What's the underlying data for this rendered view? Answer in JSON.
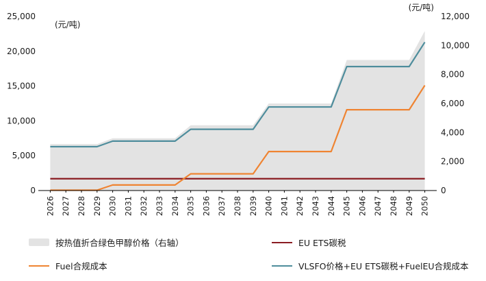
{
  "chart_data": {
    "type": "line",
    "title": "",
    "grid": false,
    "legend_position": "bottom",
    "x": [
      "2026",
      "2027",
      "2028",
      "2029",
      "2030",
      "2031",
      "2032",
      "2033",
      "2034",
      "2035",
      "2036",
      "2037",
      "2038",
      "2039",
      "2040",
      "2041",
      "2042",
      "2043",
      "2044",
      "2045",
      "2046",
      "2047",
      "2048",
      "2049",
      "2050"
    ],
    "left_axis": {
      "label": "(元/吨)",
      "lim": [
        0,
        25000
      ],
      "ticks": [
        0,
        5000,
        10000,
        15000,
        20000,
        25000
      ]
    },
    "right_axis": {
      "label": "(元/吨)",
      "lim": [
        0,
        12000
      ],
      "ticks": [
        0,
        2000,
        4000,
        6000,
        8000,
        10000,
        12000
      ]
    },
    "series": [
      {
        "name": "按热值折合绿色甲醇价格（右轴）",
        "kind": "area",
        "axis": "right",
        "color": "#e3e3e3",
        "values": [
          3200,
          3200,
          3200,
          3200,
          3600,
          3600,
          3600,
          3600,
          3600,
          4500,
          4500,
          4500,
          4500,
          4500,
          6000,
          6000,
          6000,
          6000,
          6000,
          9000,
          9000,
          9000,
          9000,
          9000,
          11000
        ]
      },
      {
        "name": "EU ETS碳税",
        "kind": "line",
        "axis": "left",
        "color": "#8a1c22",
        "values": [
          1700,
          1700,
          1700,
          1700,
          1700,
          1700,
          1700,
          1700,
          1700,
          1700,
          1700,
          1700,
          1700,
          1700,
          1700,
          1700,
          1700,
          1700,
          1700,
          1700,
          1700,
          1700,
          1700,
          1700,
          1700
        ]
      },
      {
        "name": "Fuel合规成本",
        "kind": "line",
        "axis": "left",
        "color": "#ef8432",
        "values": [
          50,
          50,
          50,
          50,
          800,
          800,
          800,
          800,
          800,
          2400,
          2400,
          2400,
          2400,
          2400,
          5600,
          5600,
          5600,
          5600,
          5600,
          11600,
          11600,
          11600,
          11600,
          11600,
          15100
        ]
      },
      {
        "name": "VLSFO价格+EU ETS碳税+FuelEU合规成本",
        "kind": "line",
        "axis": "left",
        "color": "#4e8d9c",
        "values": [
          6300,
          6300,
          6300,
          6300,
          7100,
          7100,
          7100,
          7100,
          7100,
          8800,
          8800,
          8800,
          8800,
          8800,
          12000,
          12000,
          12000,
          12000,
          12000,
          17800,
          17800,
          17800,
          17800,
          17800,
          21300
        ]
      }
    ]
  }
}
